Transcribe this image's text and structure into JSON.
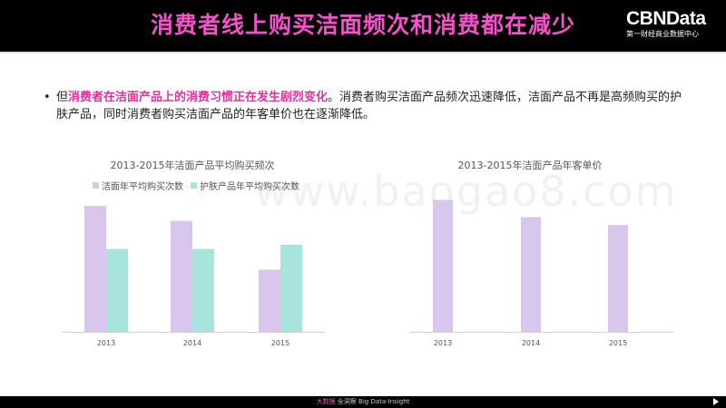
{
  "header": {
    "title": "消费者线上购买洁面频次和消费都在减少",
    "logo_main": "CBNData",
    "logo_sub": "第一财经商业数据中心"
  },
  "bullet": {
    "prefix": "但",
    "highlight": "消费者在洁面产品上的消费习惯正在发生剧烈变化",
    "rest": "。消费者购买洁面产品频次迅速降低，洁面产品不再是高频购买的护肤产品，同时消费者购买洁面产品的年客单价也在逐渐降低。"
  },
  "watermark": "www.baogao8.com",
  "footer": {
    "pink": "大数据",
    "rest": "  全洞察 Big Data-Insight"
  },
  "colors": {
    "accent": "#f054c8",
    "series1": "#d8c6ec",
    "series2": "#a6e4dc"
  },
  "chart_data": [
    {
      "type": "bar",
      "title": "2013-2015年洁面产品平均购买频次",
      "categories": [
        "2013",
        "2014",
        "2015"
      ],
      "series": [
        {
          "name": "洁面年平均购买次数",
          "values": [
            1.52,
            1.34,
            0.75
          ]
        },
        {
          "name": "护肤产品年平均购买次数",
          "values": [
            1.0,
            1.0,
            1.05
          ]
        }
      ],
      "ylim": [
        0,
        1.75
      ],
      "grid": false,
      "legend": "top-left"
    },
    {
      "type": "bar",
      "title": "2013-2015年洁面产品年客单价",
      "categories": [
        "2013",
        "2014",
        "2015"
      ],
      "series": [
        {
          "values": [
            1.0,
            0.87,
            0.81
          ]
        }
      ],
      "ylim": [
        0,
        1.1
      ],
      "grid": false
    }
  ]
}
